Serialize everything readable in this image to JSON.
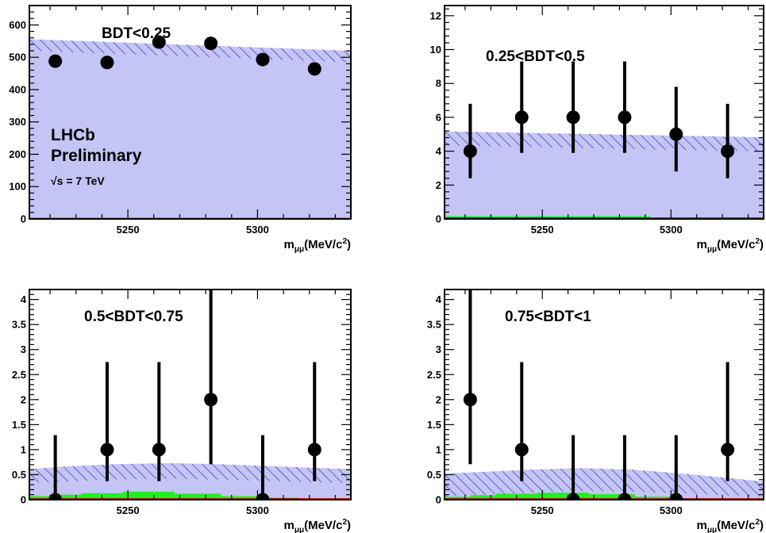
{
  "colors": {
    "background_fill": "#c4c4f5",
    "hatch": "#2c2cc4",
    "signal_green": "#22ee22",
    "signal_red": "#cc0000",
    "data_marker": "#000000"
  },
  "experiment": {
    "name": "LHCb",
    "status": "Preliminary",
    "energy": "√s = 7 TeV"
  },
  "chart_data": [
    {
      "type": "scatter",
      "title": "BDT<0.25",
      "xlabel_main": "m",
      "xlabel_sub": "μμ",
      "xlabel_unit": "(MeV/c",
      "xlabel_sup": "2",
      "xlabel_close": ")",
      "xlim": [
        5212,
        5336
      ],
      "ylim": [
        0,
        660
      ],
      "xticks": [
        "5250",
        "5300"
      ],
      "xtick_values": [
        5250,
        5300
      ],
      "yticks": [
        "0",
        "100",
        "200",
        "300",
        "400",
        "500",
        "600"
      ],
      "ytick_values": [
        0,
        100,
        200,
        300,
        400,
        500,
        600
      ],
      "points": {
        "x": [
          5222,
          5242,
          5262,
          5282,
          5302,
          5322
        ],
        "y": [
          488,
          484,
          547,
          543,
          493,
          464
        ],
        "err": [
          0,
          0,
          0,
          0,
          0,
          0
        ]
      },
      "background": {
        "x": [
          5212,
          5336
        ],
        "center": [
          538,
          502
        ],
        "band": 18
      },
      "signal_green": [
        [
          5212,
          5336,
          0.5
        ]
      ],
      "signal_red": 0.3
    },
    {
      "type": "scatter",
      "title": "0.25<BDT<0.5",
      "xlabel_main": "m",
      "xlabel_sub": "μμ",
      "xlabel_unit": "(MeV/c",
      "xlabel_sup": "2",
      "xlabel_close": ")",
      "xlim": [
        5212,
        5336
      ],
      "ylim": [
        0,
        12.6
      ],
      "xticks": [
        "5250",
        "5300"
      ],
      "xtick_values": [
        5250,
        5300
      ],
      "yticks": [
        "0",
        "2",
        "4",
        "6",
        "8",
        "10",
        "12"
      ],
      "ytick_values": [
        0,
        2,
        4,
        6,
        8,
        10,
        12
      ],
      "points": {
        "x": [
          5222,
          5242,
          5262,
          5282,
          5302,
          5322
        ],
        "y": [
          4,
          6,
          6,
          6,
          5,
          4
        ],
        "lo": [
          2.4,
          3.9,
          3.9,
          3.9,
          2.8,
          2.4
        ],
        "hi": [
          6.8,
          9.3,
          9.3,
          9.3,
          7.8,
          6.8
        ]
      },
      "background": {
        "x": [
          5212,
          5336
        ],
        "center": [
          4.75,
          4.4
        ],
        "band": 0.42
      },
      "signal_green": [
        [
          5212,
          5292,
          0.16
        ]
      ],
      "signal_red": 0.03
    },
    {
      "type": "scatter",
      "title": "0.5<BDT<0.75",
      "xlabel_main": "m",
      "xlabel_sub": "μμ",
      "xlabel_unit": "(MeV/c",
      "xlabel_sup": "2",
      "xlabel_close": ")",
      "xlim": [
        5212,
        5336
      ],
      "ylim": [
        0,
        4.2
      ],
      "xticks": [
        "5250",
        "5300"
      ],
      "xtick_values": [
        5250,
        5300
      ],
      "yticks": [
        "0",
        "0.5",
        "1",
        "1.5",
        "2",
        "2.5",
        "3",
        "3.5",
        "4"
      ],
      "ytick_values": [
        0,
        0.5,
        1,
        1.5,
        2,
        2.5,
        3,
        3.5,
        4
      ],
      "points": {
        "x": [
          5222,
          5242,
          5262,
          5282,
          5302,
          5322
        ],
        "y": [
          0,
          1,
          1,
          2,
          0,
          1
        ],
        "lo": [
          0,
          0.37,
          0.37,
          0.71,
          0,
          0.37
        ],
        "hi": [
          1.29,
          2.75,
          2.75,
          4.6,
          1.29,
          2.75
        ]
      },
      "background": {
        "band_points": {
          "x": [
            5212,
            5225,
            5245,
            5265,
            5285,
            5305,
            5325,
            5336
          ],
          "lower": [
            0.33,
            0.36,
            0.4,
            0.42,
            0.4,
            0.37,
            0.34,
            0.33
          ],
          "upper": [
            0.61,
            0.66,
            0.71,
            0.73,
            0.71,
            0.67,
            0.63,
            0.61
          ]
        }
      },
      "signal_green": [
        [
          5212,
          5222,
          0.07
        ],
        [
          5222,
          5232,
          0.1
        ],
        [
          5232,
          5248,
          0.13
        ],
        [
          5248,
          5268,
          0.16
        ],
        [
          5268,
          5286,
          0.12
        ],
        [
          5286,
          5304,
          0.07
        ],
        [
          5304,
          5316,
          0.04
        ],
        [
          5316,
          5336,
          0.02
        ]
      ],
      "signal_red": 0.01
    },
    {
      "type": "scatter",
      "title": "0.75<BDT<1",
      "xlabel_main": "m",
      "xlabel_sub": "μμ",
      "xlabel_unit": "(MeV/c",
      "xlabel_sup": "2",
      "xlabel_close": ")",
      "xlim": [
        5212,
        5336
      ],
      "ylim": [
        0,
        4.2
      ],
      "xticks": [
        "5250",
        "5300"
      ],
      "xtick_values": [
        5250,
        5300
      ],
      "yticks": [
        "0",
        "0.5",
        "1",
        "1.5",
        "2",
        "2.5",
        "3",
        "3.5",
        "4"
      ],
      "ytick_values": [
        0,
        0.5,
        1,
        1.5,
        2,
        2.5,
        3,
        3.5,
        4
      ],
      "points": {
        "x": [
          5222,
          5242,
          5262,
          5282,
          5302,
          5322
        ],
        "y": [
          2,
          1,
          0,
          0,
          0,
          1
        ],
        "lo": [
          0.71,
          0.37,
          0,
          0,
          0,
          0.37
        ],
        "hi": [
          4.6,
          2.75,
          1.29,
          1.29,
          1.29,
          2.75
        ]
      },
      "background": {
        "band_points": {
          "x": [
            5212,
            5225,
            5245,
            5265,
            5285,
            5305,
            5325,
            5336
          ],
          "lower": [
            0.06,
            0.09,
            0.14,
            0.17,
            0.16,
            0.12,
            0.08,
            0.06
          ],
          "upper": [
            0.52,
            0.55,
            0.6,
            0.63,
            0.6,
            0.52,
            0.42,
            0.36
          ]
        }
      },
      "signal_green": [
        [
          5212,
          5222,
          0.06
        ],
        [
          5222,
          5232,
          0.09
        ],
        [
          5232,
          5248,
          0.12
        ],
        [
          5248,
          5268,
          0.14
        ],
        [
          5268,
          5286,
          0.11
        ],
        [
          5286,
          5304,
          0.06
        ],
        [
          5304,
          5316,
          0.03
        ],
        [
          5316,
          5336,
          0.02
        ]
      ],
      "signal_red": 0.01
    }
  ]
}
